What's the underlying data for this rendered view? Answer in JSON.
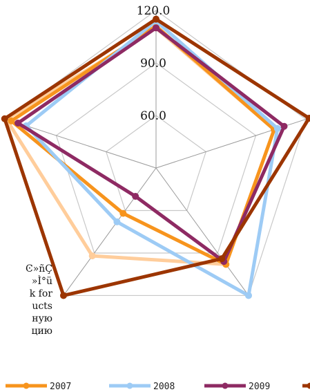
{
  "chart_data": {
    "type": "radar",
    "title": "",
    "axes": [
      "",
      "",
      "",
      "",
      ""
    ],
    "rlim": [
      30,
      120
    ],
    "ticks": [
      {
        "value": 60,
        "label": "60.0"
      },
      {
        "value": 90,
        "label": "90.0"
      },
      {
        "value": 120,
        "label": "120.0"
      }
    ],
    "grid": true,
    "legend": "bottom",
    "series": [
      {
        "name": "2007",
        "color": "#f7941d",
        "values": [
          111,
          101,
          98,
          62,
          117
        ]
      },
      {
        "name": "2008",
        "color": "#9dcbf5",
        "values": [
          114,
          103,
          120,
          68,
          108
        ]
      },
      {
        "name": "2009",
        "color": "#8e2a63",
        "values": [
          110,
          107,
          96,
          50,
          113
        ]
      },
      {
        "name": "",
        "color": "#9c3500",
        "values": [
          115,
          122,
          94,
          120,
          121
        ]
      },
      {
        "name": "",
        "color": "#ffcd9b",
        "values": [
          110,
          101,
          98,
          92,
          120
        ]
      }
    ]
  },
  "side_text": [
    "Ͼ»ñÇ",
    "»Ì°ü",
    "k for",
    "ucts",
    "ную",
    "цию"
  ]
}
